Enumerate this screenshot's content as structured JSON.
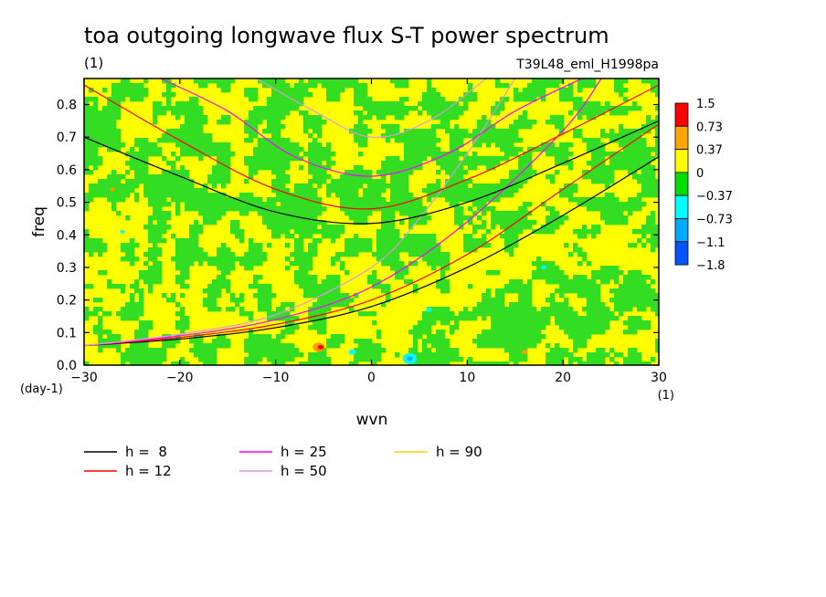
{
  "chart_data": {
    "type": "heatmap",
    "title": "toa outgoing longwave flux S-T power spectrum",
    "title_units": "(1)",
    "experiment": "T39L48_eml_H1998pa",
    "xlabel": "wvn",
    "ylabel": "freq",
    "x_units": "(1)",
    "y_units": "(day-1)",
    "xlim": [
      -30,
      30
    ],
    "ylim": [
      0,
      0.88
    ],
    "x_ticks": [
      "−30",
      "−20",
      "−10",
      "0",
      "10",
      "20",
      "30"
    ],
    "x_tick_values": [
      -30,
      -20,
      -10,
      0,
      10,
      20,
      30
    ],
    "y_ticks": [
      "0.0",
      "0.1",
      "0.2",
      "0.3",
      "0.4",
      "0.5",
      "0.6",
      "0.7",
      "0.8"
    ],
    "y_tick_values": [
      0,
      0.1,
      0.2,
      0.3,
      0.4,
      0.5,
      0.6,
      0.7,
      0.8
    ],
    "colorbar": {
      "labels": [
        "1.5",
        "0.73",
        "0.37",
        "0",
        "−0.37",
        "−0.73",
        "−1.1",
        "−1.8"
      ],
      "colors": [
        "#ff0000",
        "#ffa500",
        "#ffff00",
        "#00dd00",
        "#00ffff",
        "#00aaff",
        "#0055ff"
      ]
    },
    "field_colors": {
      "positive": "#ffff00",
      "negative": "#33dd22",
      "strong_positive": "#ff9900",
      "strong_negative": "#00ffff"
    },
    "legend": [
      {
        "label": "h =  8",
        "color": "#000000"
      },
      {
        "label": "h = 12",
        "color": "#ff0000"
      },
      {
        "label": "h = 25",
        "color": "#ff00ff"
      },
      {
        "label": "h = 50",
        "color": "#dd99dd"
      },
      {
        "label": "h = 90",
        "color": "#ffcc00"
      }
    ],
    "dispersion_curves": {
      "kelvin": {
        "h8": {
          "color": "#000000",
          "points": [
            [
              -30,
              0.06
            ],
            [
              -20,
              0.08
            ],
            [
              -10,
              0.115
            ],
            [
              0,
              0.18
            ],
            [
              10,
              0.3
            ],
            [
              20,
              0.46
            ],
            [
              30,
              0.64
            ]
          ]
        },
        "h12": {
          "color": "#ff0000",
          "points": [
            [
              -30,
              0.06
            ],
            [
              -20,
              0.085
            ],
            [
              -10,
              0.125
            ],
            [
              0,
              0.2
            ],
            [
              10,
              0.34
            ],
            [
              20,
              0.54
            ],
            [
              30,
              0.74
            ]
          ]
        },
        "h25": {
          "color": "#ff00ff",
          "points": [
            [
              -30,
              0.06
            ],
            [
              -20,
              0.09
            ],
            [
              -10,
              0.14
            ],
            [
              0,
              0.24
            ],
            [
              10,
              0.44
            ],
            [
              20,
              0.72
            ],
            [
              24,
              0.88
            ]
          ]
        },
        "h50": {
          "color": "#dd99dd",
          "points": [
            [
              -30,
              0.06
            ],
            [
              -20,
              0.095
            ],
            [
              -10,
              0.155
            ],
            [
              0,
              0.3
            ],
            [
              5,
              0.45
            ],
            [
              10,
              0.65
            ],
            [
              15,
              0.88
            ]
          ]
        }
      },
      "gravity": {
        "h8": {
          "color": "#000000",
          "points": [
            [
              -30,
              0.7
            ],
            [
              -20,
              0.58
            ],
            [
              -10,
              0.47
            ],
            [
              0,
              0.435
            ],
            [
              10,
              0.5
            ],
            [
              20,
              0.62
            ],
            [
              30,
              0.75
            ]
          ]
        },
        "h12": {
          "color": "#ff0000",
          "points": [
            [
              -30,
              0.86
            ],
            [
              -20,
              0.69
            ],
            [
              -10,
              0.54
            ],
            [
              0,
              0.48
            ],
            [
              10,
              0.57
            ],
            [
              20,
              0.71
            ],
            [
              30,
              0.86
            ]
          ]
        },
        "h25": {
          "color": "#ff00ff",
          "points": [
            [
              -22,
              0.88
            ],
            [
              -15,
              0.78
            ],
            [
              -8,
              0.64
            ],
            [
              0,
              0.58
            ],
            [
              8,
              0.65
            ],
            [
              15,
              0.78
            ],
            [
              22,
              0.88
            ]
          ]
        },
        "h50": {
          "color": "#dd99dd",
          "points": [
            [
              -12,
              0.88
            ],
            [
              -6,
              0.78
            ],
            [
              0,
              0.7
            ],
            [
              6,
              0.75
            ],
            [
              12,
              0.88
            ]
          ]
        }
      }
    }
  }
}
